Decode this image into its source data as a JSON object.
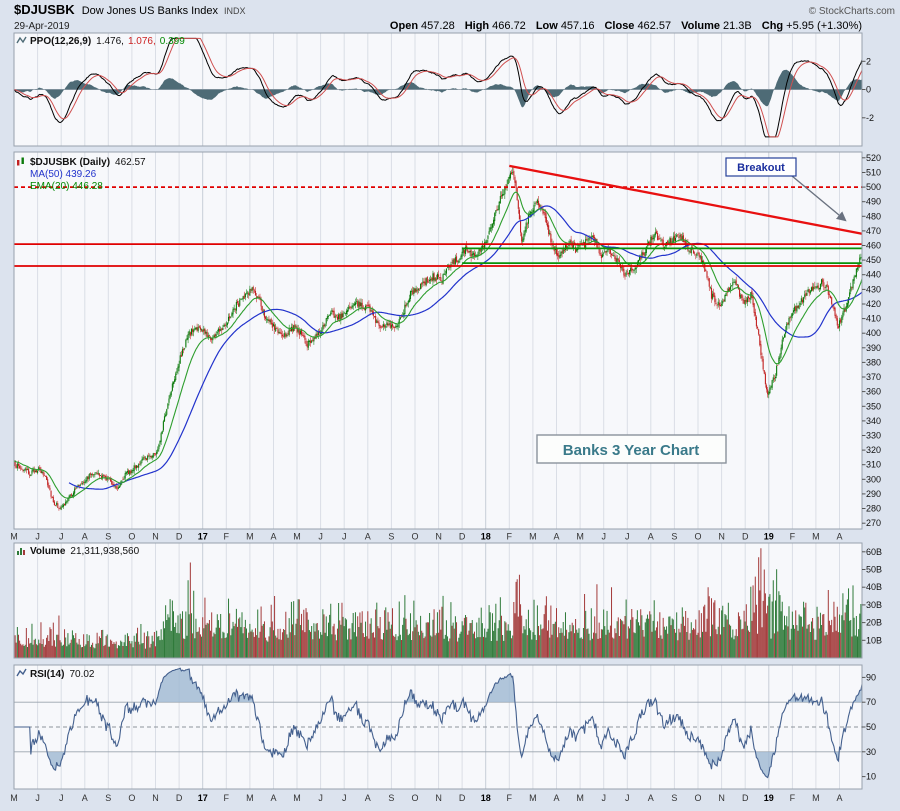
{
  "header": {
    "symbol": "$DJUSBK",
    "name": "Dow Jones US Banks Index",
    "exchange": "INDX",
    "copyright": "© StockCharts.com",
    "date": "29-Apr-2019",
    "quote": [
      {
        "label": "Open",
        "value": "457.28"
      },
      {
        "label": "High",
        "value": "466.72"
      },
      {
        "label": "Low",
        "value": "457.16"
      },
      {
        "label": "Close",
        "value": "462.57"
      },
      {
        "label": "Volume",
        "value": "21.3B"
      },
      {
        "label": "Chg",
        "value": "+5.95 (+1.30%)"
      }
    ]
  },
  "panels": {
    "ppo": {
      "label": "PPO(12,26,9)",
      "v1": "1.476,",
      "v2": "1.076,",
      "v3": "0.399"
    },
    "main": {
      "label": "$DJUSBK (Daily)",
      "close": "462.57"
    },
    "volume": {
      "name": "Volume",
      "value": "21,311,938,560"
    },
    "rsi": {
      "name": "RSI(14)",
      "value": "70.02"
    }
  },
  "annotations": {
    "breakout": "Breakout",
    "caption": "Banks 3 Year Chart"
  },
  "chart_data": {
    "type": "candlestick",
    "symbol": "$DJUSBK",
    "timeframe": "Daily, May 2016 - Apr 2019",
    "x_months": [
      "M",
      "J",
      "J",
      "A",
      "S",
      "O",
      "N",
      "D",
      "17",
      "F",
      "M",
      "A",
      "M",
      "J",
      "J",
      "A",
      "S",
      "O",
      "N",
      "D",
      "18",
      "F",
      "M",
      "A",
      "M",
      "J",
      "J",
      "A",
      "S",
      "O",
      "N",
      "D",
      "19",
      "F",
      "M",
      "A"
    ],
    "days_per_month": 21,
    "close_anchors_per_month": 3,
    "close_anchors": [
      311,
      307,
      304,
      307,
      302,
      284,
      280,
      288,
      295,
      300,
      305,
      302,
      300,
      294,
      303,
      307,
      312,
      316,
      318,
      342,
      366,
      383,
      399,
      404,
      401,
      396,
      403,
      409,
      419,
      424,
      431,
      421,
      408,
      403,
      397,
      404,
      401,
      392,
      398,
      404,
      414,
      411,
      415,
      421,
      419,
      416,
      404,
      407,
      402,
      413,
      427,
      431,
      435,
      439,
      437,
      446,
      451,
      457,
      453,
      460,
      468,
      486,
      501,
      514,
      464,
      481,
      491,
      480,
      459,
      453,
      462,
      457,
      461,
      469,
      452,
      459,
      450,
      440,
      443,
      451,
      461,
      467,
      459,
      464,
      467,
      459,
      455,
      448,
      426,
      419,
      427,
      435,
      420,
      427,
      396,
      359,
      370,
      396,
      413,
      419,
      427,
      431,
      435,
      426,
      405,
      419,
      437,
      456
    ],
    "final_ohlc": {
      "open": 457.28,
      "high": 466.72,
      "low": 457.16,
      "close": 462.57
    },
    "price_axis": {
      "min": 266,
      "max": 524,
      "ticks": [
        520,
        510,
        500,
        490,
        480,
        470,
        460,
        450,
        440,
        430,
        420,
        410,
        400,
        390,
        380,
        370,
        360,
        350,
        340,
        330,
        320,
        310,
        300,
        290,
        280,
        270
      ]
    },
    "overlays": {
      "ma50": {
        "label": "MA(50) 439.26",
        "color": "#2233cc",
        "period": 50
      },
      "ema20": {
        "label": "EMA(20) 446.28",
        "color": "#2e9e2e",
        "period": 20
      }
    },
    "hlines": [
      {
        "value": 500,
        "color": "#e00000",
        "style": "dashed"
      },
      {
        "value": 461,
        "color": "#e00000",
        "style": "solid"
      },
      {
        "value": 446,
        "color": "#e00000",
        "style": "solid"
      },
      {
        "value": 458,
        "color": "#089108",
        "style": "solid",
        "from_day": 399
      },
      {
        "value": 448,
        "color": "#089108",
        "style": "solid",
        "from_day": 399
      }
    ],
    "trendline": {
      "from_day": 441,
      "from_value": 514.5,
      "to_day": 755,
      "to_value": 468,
      "color": "#e81010"
    },
    "ppo": {
      "params": "12,26,9",
      "last": [
        1.476,
        1.076,
        0.399
      ],
      "axis": {
        "min": -4,
        "max": 4,
        "ticks": [
          2,
          0,
          -2
        ]
      }
    },
    "rsi": {
      "period": 14,
      "last": 70.02,
      "overbought": 70,
      "oversold": 30,
      "mid": 50,
      "axis": {
        "min": 0,
        "max": 100,
        "ticks": [
          90,
          70,
          50,
          30,
          10
        ]
      }
    },
    "volume": {
      "last": "21,311,938,560",
      "max_B": 65,
      "ticks": [
        {
          "v": 60,
          "t": "60B"
        },
        {
          "v": 50,
          "t": "50B"
        },
        {
          "v": 40,
          "t": "40B"
        },
        {
          "v": 30,
          "t": "30B"
        },
        {
          "v": 20,
          "t": "20B"
        },
        {
          "v": 10,
          "t": "10B"
        }
      ]
    },
    "volume_spikes": [
      {
        "day": 40,
        "B": 24
      },
      {
        "day": 155,
        "B": 44
      },
      {
        "day": 157,
        "B": 54
      },
      {
        "day": 160,
        "B": 38
      },
      {
        "day": 447,
        "B": 43
      },
      {
        "day": 450,
        "B": 47
      },
      {
        "day": 532,
        "B": 40
      },
      {
        "day": 618,
        "B": 40
      },
      {
        "day": 660,
        "B": 46
      },
      {
        "day": 663,
        "B": 57
      },
      {
        "day": 665,
        "B": 62
      },
      {
        "day": 668,
        "B": 50
      },
      {
        "day": 676,
        "B": 44
      }
    ]
  }
}
